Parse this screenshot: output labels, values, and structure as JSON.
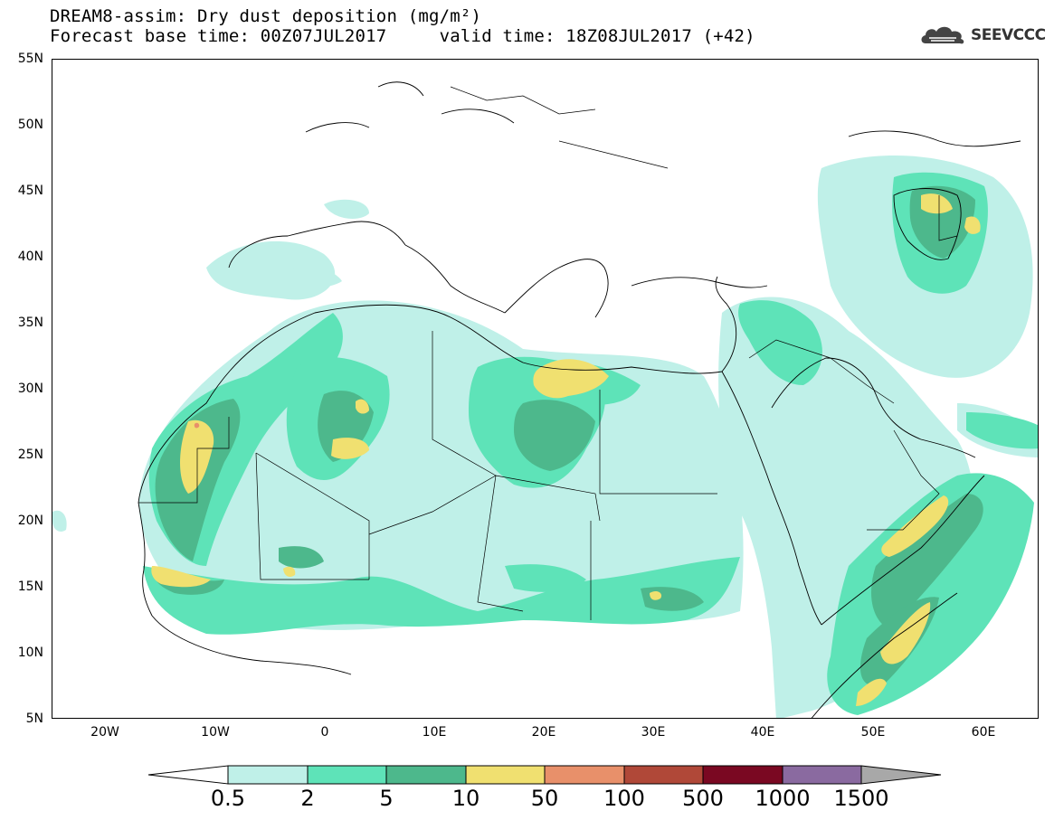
{
  "header": {
    "title_line1": "DREAM8-assim: Dry dust deposition (mg/m²)",
    "title_line2": "Forecast base time: 00Z07JUL2017     valid time: 18Z08JUL2017 (+42)"
  },
  "logo": {
    "text": "SEEVCCC",
    "icon": "cloud-logo-icon"
  },
  "map": {
    "lat_labels": [
      "55N",
      "50N",
      "45N",
      "40N",
      "35N",
      "30N",
      "25N",
      "20N",
      "15N",
      "10N",
      "5N"
    ],
    "lon_labels": [
      "20W",
      "10W",
      "0",
      "10E",
      "20E",
      "30E",
      "40E",
      "50E",
      "60E"
    ]
  },
  "colors": {
    "level_0_5": "#bff0e8",
    "level_2": "#5ee3b8",
    "level_5": "#4db88c",
    "level_10": "#f0e070",
    "level_50": "#e8906a",
    "level_100": "#b04838",
    "level_500": "#7a0822",
    "level_1000": "#8a6aa0",
    "level_1500": "#a8a8a8"
  },
  "colorbar": {
    "labels": [
      "0.5",
      "2",
      "5",
      "10",
      "50",
      "100",
      "500",
      "1000",
      "1500"
    ]
  }
}
